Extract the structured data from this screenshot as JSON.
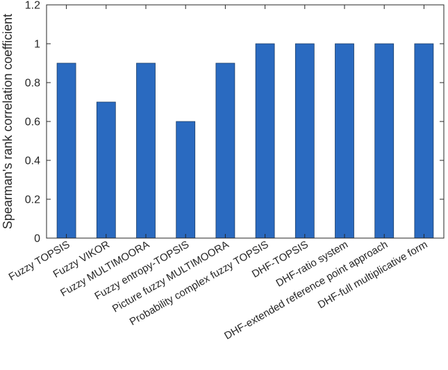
{
  "chart_data": {
    "type": "bar",
    "title": "",
    "xlabel": "",
    "ylabel": "Spearman's rank correlation coefficient",
    "categories": [
      "Fuzzy TOPSIS",
      "Fuzzy VIKOR",
      "Fuzzy MULTIMOORA",
      "Fuzzy entropy-TOPSIS",
      "Picture fuzzy MULTIMOORA",
      "Probability complex fuzzy TOPSIS",
      "DHF-TOPSIS",
      "DHF-ratio system",
      "DHF-extended reference point approach",
      "DHF-full multiplicative form"
    ],
    "values": [
      0.9,
      0.7,
      0.9,
      0.6,
      0.9,
      1.0,
      1.0,
      1.0,
      1.0,
      1.0
    ],
    "ylim": [
      0,
      1.2
    ],
    "yticks": [
      0,
      0.2,
      0.4,
      0.6,
      0.8,
      1,
      1.2
    ],
    "ytick_labels": [
      "0",
      "0.2",
      "0.4",
      "0.6",
      "0.8",
      "1",
      "1.2"
    ],
    "grid": false,
    "legend": "none",
    "colors": {
      "bar_fill": "#2a6ac0",
      "bar_stroke": "#1f3f66",
      "axis": "#262626"
    }
  }
}
